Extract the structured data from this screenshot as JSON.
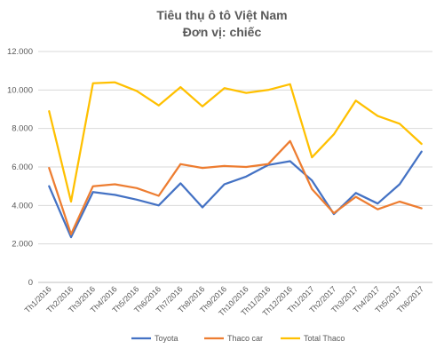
{
  "chart_data": {
    "type": "line",
    "title": "Tiêu thụ ô tô Việt Nam",
    "subtitle": "Đơn vị: chiếc",
    "categories": [
      "Th1/2016",
      "Th2/2016",
      "Th3/2016",
      "Th4/2016",
      "Th5/2016",
      "Th6/2016",
      "Th7/2016",
      "Th8/2016",
      "Th9/2016",
      "Th10/2016",
      "Th11/2016",
      "Th12/2016",
      "Th1/2017",
      "Th2/2017",
      "Th3/2017",
      "Th4/2017",
      "Th5/2017",
      "Th6/2017"
    ],
    "yticks": [
      "0",
      "2.000",
      "4.000",
      "6.000",
      "8.000",
      "10.000",
      "12.000"
    ],
    "ylim": [
      0,
      12000
    ],
    "grid": true,
    "legend_position": "bottom",
    "series": [
      {
        "name": "Toyota",
        "color": "#4472c4",
        "values": [
          5000,
          2350,
          4700,
          4550,
          4300,
          4000,
          5150,
          3900,
          5100,
          5500,
          6100,
          6300,
          5300,
          3550,
          4650,
          4100,
          5100,
          6800
        ]
      },
      {
        "name": "Thaco car",
        "color": "#ed7d31",
        "values": [
          5950,
          2500,
          5000,
          5100,
          4900,
          4500,
          6150,
          5950,
          6050,
          6000,
          6150,
          7350,
          4850,
          3600,
          4450,
          3800,
          4200,
          3850
        ]
      },
      {
        "name": "Total Thaco",
        "color": "#ffc000",
        "values": [
          8900,
          4200,
          10350,
          10400,
          9950,
          9200,
          10150,
          9150,
          10100,
          9850,
          10000,
          10300,
          6500,
          7700,
          9450,
          8650,
          8250,
          7200
        ]
      }
    ]
  }
}
